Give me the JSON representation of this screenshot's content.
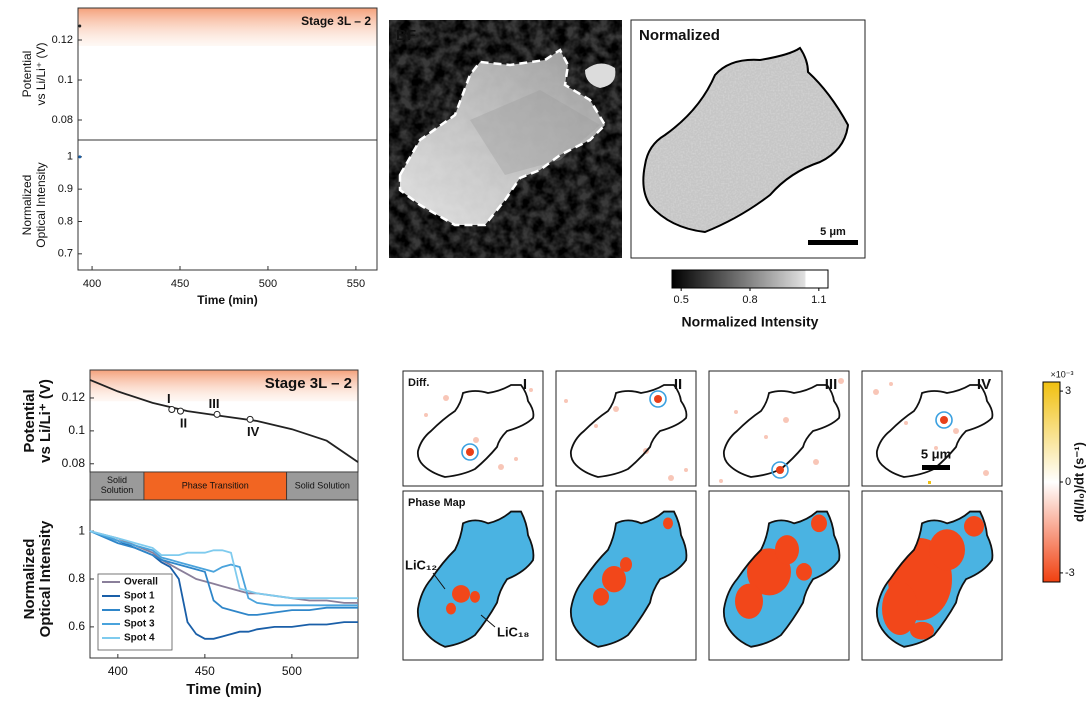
{
  "chart_data": [
    {
      "type": "line",
      "annotation": "Stage 3L – 2",
      "ylabel": [
        "Potential",
        "vs Li/Li⁺ (V)"
      ],
      "xlim": [
        392,
        562
      ],
      "ylim": [
        0.07,
        0.136
      ],
      "yticks": [
        0.08,
        0.1,
        0.12
      ],
      "highlight_ylim": [
        0.117,
        0.136
      ],
      "x": [
        393
      ],
      "series": [
        {
          "color": "#222222",
          "values": [
            0.127
          ]
        }
      ]
    },
    {
      "type": "line",
      "ylabel": [
        "Normalized",
        "Optical Intensity"
      ],
      "xlabel": "Time (min)",
      "xlim": [
        392,
        562
      ],
      "xticks": [
        400,
        450,
        500,
        550
      ],
      "ylim": [
        0.65,
        1.052
      ],
      "yticks": [
        0.7,
        0.8,
        0.9,
        1
      ],
      "x": [
        393
      ],
      "series": [
        {
          "color": "#1a5fa8",
          "values": [
            1.0
          ]
        }
      ]
    },
    {
      "type": "line",
      "annotation": "Stage 3L – 2",
      "ylabel": [
        "Potential",
        "vs Li/Li⁺ (V)"
      ],
      "xlim": [
        384,
        538
      ],
      "ylim": [
        0.075,
        0.137
      ],
      "yticks": [
        0.08,
        0.1,
        0.12
      ],
      "highlight_ylim": [
        0.118,
        0.137
      ],
      "x": [
        384,
        400,
        420,
        440,
        460,
        480,
        500,
        520,
        538
      ],
      "series": [
        {
          "color": "#222222",
          "values": [
            0.131,
            0.124,
            0.117,
            0.112,
            0.109,
            0.106,
            0.101,
            0.094,
            0.081
          ]
        }
      ],
      "points": [
        {
          "label": "I",
          "x": 431,
          "y": 0.113
        },
        {
          "label": "II",
          "x": 436,
          "y": 0.112
        },
        {
          "label": "III",
          "x": 457,
          "y": 0.11
        },
        {
          "label": "IV",
          "x": 476,
          "y": 0.107
        }
      ],
      "phases": [
        {
          "label": "Solid Solution",
          "from": 384,
          "to": 415,
          "color": "#9a9a9a"
        },
        {
          "label": "Phase Transition",
          "from": 415,
          "to": 497,
          "color": "#f26522"
        },
        {
          "label": "Solid Solution",
          "from": 497,
          "to": 538,
          "color": "#9a9a9a"
        }
      ]
    },
    {
      "type": "line",
      "ylabel": [
        "Normalized",
        "Optical Intensity"
      ],
      "xlabel": "Time (min)",
      "xlim": [
        384,
        538
      ],
      "xticks": [
        400,
        450,
        500
      ],
      "ylim": [
        0.47,
        1.13
      ],
      "yticks": [
        0.6,
        0.8,
        1
      ],
      "legend": "lower left",
      "x": [
        384,
        400,
        410,
        420,
        425,
        430,
        435,
        440,
        445,
        450,
        455,
        460,
        465,
        470,
        475,
        480,
        490,
        500,
        510,
        520,
        530,
        538
      ],
      "series": [
        {
          "name": "Overall",
          "color": "#8a7f9a",
          "values": [
            1.0,
            0.97,
            0.94,
            0.91,
            0.88,
            0.86,
            0.84,
            0.82,
            0.8,
            0.79,
            0.78,
            0.77,
            0.76,
            0.75,
            0.74,
            0.74,
            0.73,
            0.72,
            0.71,
            0.71,
            0.7,
            0.7
          ]
        },
        {
          "name": "Spot 1",
          "color": "#1a5fa8",
          "values": [
            1.0,
            0.96,
            0.93,
            0.9,
            0.87,
            0.85,
            0.8,
            0.62,
            0.57,
            0.55,
            0.55,
            0.56,
            0.57,
            0.58,
            0.58,
            0.59,
            0.6,
            0.6,
            0.61,
            0.61,
            0.62,
            0.62
          ]
        },
        {
          "name": "Spot 2",
          "color": "#2f86c9",
          "values": [
            1.0,
            0.95,
            0.93,
            0.9,
            0.88,
            0.87,
            0.86,
            0.85,
            0.84,
            0.83,
            0.71,
            0.68,
            0.67,
            0.66,
            0.65,
            0.65,
            0.66,
            0.67,
            0.67,
            0.68,
            0.68,
            0.68
          ]
        },
        {
          "name": "Spot 3",
          "color": "#4aa3dc",
          "values": [
            1.0,
            0.96,
            0.94,
            0.92,
            0.89,
            0.88,
            0.87,
            0.86,
            0.85,
            0.84,
            0.83,
            0.85,
            0.86,
            0.85,
            0.72,
            0.7,
            0.69,
            0.69,
            0.69,
            0.69,
            0.69,
            0.69
          ]
        },
        {
          "name": "Spot 4",
          "color": "#7fcbee",
          "values": [
            1.0,
            0.97,
            0.95,
            0.93,
            0.9,
            0.9,
            0.9,
            0.91,
            0.91,
            0.91,
            0.92,
            0.92,
            0.91,
            0.76,
            0.75,
            0.74,
            0.73,
            0.72,
            0.72,
            0.72,
            0.72,
            0.72
          ]
        }
      ]
    }
  ],
  "panels": {
    "bf_label": "BF",
    "normalized_label": "Normalized",
    "scale_bar": "5 μm",
    "diff_label": "Diff.",
    "stages": [
      "I",
      "II",
      "III",
      "IV"
    ],
    "phase_map_label": "Phase Map",
    "phase_names": [
      "LiC₁₂",
      "LiC₁₈"
    ]
  },
  "colorbars": [
    {
      "label": "Normalized Intensity",
      "lim": [
        0.46,
        1.14
      ],
      "ticks": [
        0.5,
        0.8,
        1.1
      ]
    },
    {
      "label": "d(I/I₀)/dt (s⁻¹)",
      "exponent": "×10⁻³",
      "lim": [
        -3.3,
        3.3
      ],
      "ticks": [
        -3,
        0,
        3
      ]
    }
  ]
}
